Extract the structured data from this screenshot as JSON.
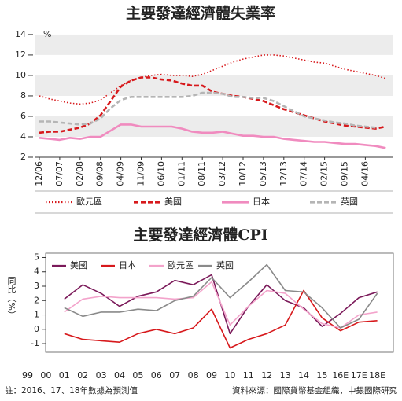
{
  "chart_data": [
    {
      "type": "line",
      "title": "主要發達經濟體失業率",
      "y_unit": "%",
      "categories": [
        "12/06",
        null,
        "07/07",
        null,
        "02/08",
        null,
        "09/08",
        null,
        "04/09",
        null,
        "11/09",
        null,
        "06/10",
        null,
        "01/11",
        null,
        "08/11",
        null,
        "03/12",
        null,
        "10/12",
        null,
        "05/13",
        null,
        "12/13",
        null,
        "07/14",
        null,
        "02/15",
        null,
        "09/15",
        null,
        "04/16",
        null,
        null
      ],
      "ylim": [
        2,
        14.3
      ],
      "yticks": [
        2,
        4,
        6,
        8,
        10,
        12,
        14
      ],
      "stripes": true,
      "series": [
        {
          "name": "歐元區",
          "color": "#d7191c",
          "style": "dotted",
          "values": [
            8.0,
            7.7,
            7.5,
            7.3,
            7.2,
            7.3,
            7.6,
            8.3,
            9.0,
            9.5,
            9.8,
            10.0,
            10.1,
            10.0,
            10.0,
            9.9,
            10.1,
            10.5,
            10.9,
            11.3,
            11.6,
            11.8,
            12.0,
            12.0,
            11.9,
            11.7,
            11.5,
            11.3,
            11.2,
            10.9,
            10.6,
            10.4,
            10.2,
            10.0,
            9.7
          ]
        },
        {
          "name": "美國",
          "color": "#d7191c",
          "style": "dashed",
          "values": [
            4.4,
            4.5,
            4.5,
            4.7,
            4.9,
            5.3,
            6.1,
            7.5,
            8.9,
            9.5,
            9.8,
            9.8,
            9.6,
            9.5,
            9.2,
            9.0,
            9.0,
            8.4,
            8.2,
            8.0,
            7.9,
            7.7,
            7.5,
            7.1,
            6.7,
            6.4,
            6.1,
            5.8,
            5.5,
            5.3,
            5.1,
            5.0,
            4.9,
            4.8,
            5.0
          ]
        },
        {
          "name": "日本",
          "color": "#f08bbf",
          "style": "solid",
          "values": [
            3.9,
            3.8,
            3.7,
            3.9,
            3.8,
            4.0,
            4.0,
            4.6,
            5.2,
            5.2,
            5.0,
            5.0,
            5.0,
            5.0,
            4.8,
            4.5,
            4.4,
            4.4,
            4.5,
            4.3,
            4.1,
            4.1,
            4.0,
            4.0,
            3.8,
            3.7,
            3.6,
            3.5,
            3.5,
            3.4,
            3.3,
            3.3,
            3.2,
            3.1,
            2.9
          ]
        },
        {
          "name": "英國",
          "color": "#b5b5b5",
          "style": "dashed",
          "values": [
            5.5,
            5.5,
            5.4,
            5.3,
            5.2,
            5.3,
            5.8,
            6.8,
            7.6,
            7.9,
            7.9,
            7.9,
            7.9,
            7.9,
            7.9,
            8.0,
            8.3,
            8.3,
            8.2,
            7.9,
            7.9,
            7.8,
            7.8,
            7.5,
            7.0,
            6.5,
            6.0,
            5.8,
            5.6,
            5.4,
            5.3,
            5.1,
            5.0,
            4.9,
            null
          ]
        }
      ]
    },
    {
      "type": "line",
      "title": "主要發達經濟體CPI",
      "ylabel": "同比（%）",
      "categories": [
        "99",
        "00",
        "01",
        "02",
        "03",
        "04",
        "05",
        "06",
        "07",
        "08",
        "09",
        "10",
        "11",
        "12",
        "13",
        "14",
        "15",
        "16E",
        "17E",
        "18E"
      ],
      "ylim": [
        -1.6,
        5.3
      ],
      "yticks": [
        -1,
        0,
        1,
        2,
        3,
        4,
        5
      ],
      "stripes": false,
      "series": [
        {
          "name": "美國",
          "color": "#7b1a5a",
          "style": "solid",
          "values": [
            null,
            null,
            2.1,
            3.1,
            2.5,
            1.6,
            2.3,
            2.6,
            3.4,
            3.1,
            3.8,
            -0.3,
            1.6,
            3.1,
            2.0,
            1.5,
            0.2,
            1.1,
            2.2,
            2.6
          ]
        },
        {
          "name": "日本",
          "color": "#d7191c",
          "style": "solid",
          "values": [
            null,
            null,
            -0.3,
            -0.7,
            -0.8,
            -0.9,
            -0.3,
            0.0,
            -0.3,
            0.1,
            1.4,
            -1.3,
            -0.7,
            -0.3,
            0.3,
            2.7,
            0.8,
            -0.1,
            0.5,
            0.6
          ]
        },
        {
          "name": "歐元區",
          "color": "#f3a3cb",
          "style": "solid",
          "values": [
            null,
            null,
            1.2,
            2.1,
            2.3,
            2.2,
            2.2,
            2.2,
            2.1,
            2.2,
            3.3,
            0.3,
            1.6,
            2.7,
            2.5,
            1.4,
            0.4,
            0.1,
            1.0,
            1.2
          ]
        },
        {
          "name": "英國",
          "color": "#8a8a8a",
          "style": "solid",
          "values": [
            null,
            null,
            1.5,
            0.9,
            1.2,
            1.2,
            1.4,
            1.3,
            2.0,
            2.3,
            3.6,
            2.2,
            3.3,
            4.5,
            2.7,
            2.6,
            1.5,
            0.1,
            0.7,
            2.5
          ]
        }
      ]
    }
  ],
  "footer": {
    "note": "註：2016、17、18年數據為預測值",
    "source": "資料來源：國際貨幣基金組織，中銀國際研究"
  }
}
